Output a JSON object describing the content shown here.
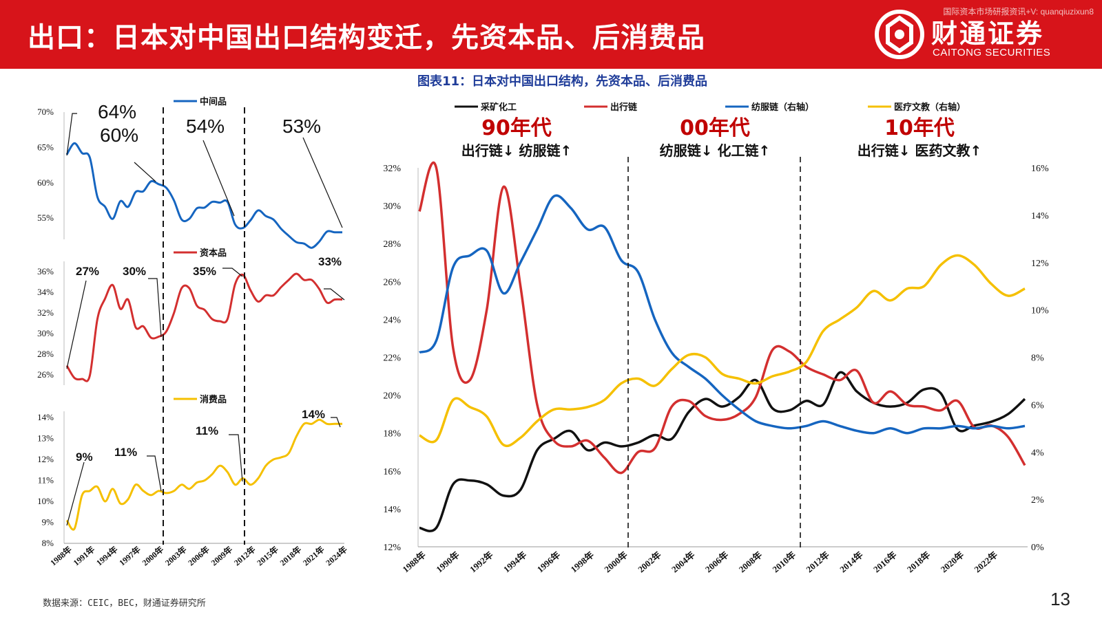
{
  "header": {
    "title": "出口：日本对中国出口结构变迁，先资本品、后消费品",
    "watermark": "国际资本市场研报资讯+V: quanqiuzixun8",
    "logo_cn": "财通证券",
    "logo_en": "CAITONG SECURITIES"
  },
  "footer": {
    "source": "数据来源：CEIC，BEC，财通证券研究所",
    "page_number": "13"
  },
  "colors": {
    "brand_red": "#d7141a",
    "blue": "#1565c0",
    "red": "#d32f2f",
    "yellow": "#f5c000",
    "black": "#111111"
  },
  "chart_data": [
    {
      "type": "line",
      "panel": "中间品",
      "x": [
        "1988年",
        "1989年",
        "1990年",
        "1991年",
        "1992年",
        "1993年",
        "1994年",
        "1995年",
        "1996年",
        "1997年",
        "1998年",
        "1999年",
        "2000年",
        "2001年",
        "2002年",
        "2003年",
        "2004年",
        "2005年",
        "2006年",
        "2007年",
        "2008年",
        "2009年",
        "2010年",
        "2011年",
        "2012年",
        "2013年",
        "2014年",
        "2015年",
        "2016年",
        "2017年",
        "2018年",
        "2019年",
        "2020年",
        "2021年",
        "2022年",
        "2023年",
        "2024年"
      ],
      "series": [
        {
          "name": "中间品",
          "values": [
            64,
            65.6,
            64.2,
            63.6,
            58,
            56.6,
            54.9,
            57.4,
            56.6,
            58.7,
            58.8,
            60.2,
            59.8,
            59.3,
            57.5,
            54.8,
            54.9,
            56.4,
            56.5,
            57.3,
            57.2,
            57.3,
            54.1,
            53.6,
            54.7,
            56.1,
            55.3,
            54.8,
            53.5,
            52.5,
            51.6,
            51.4,
            50.8,
            51.7,
            53.1,
            53.0,
            53.0
          ]
        }
      ],
      "ylim": [
        52,
        70
      ],
      "yticks": [
        "55%",
        "60%",
        "65%",
        "70%"
      ],
      "annotations": [
        "64%",
        "60%",
        "54%",
        "53%"
      ]
    },
    {
      "type": "line",
      "panel": "资本品",
      "x_ref": 0,
      "series": [
        {
          "name": "资本品",
          "values": [
            26.9,
            25.7,
            25.6,
            25.9,
            31.4,
            33.4,
            34.7,
            32.4,
            33.3,
            30.6,
            30.7,
            29.6,
            29.7,
            30.2,
            32,
            34.4,
            34.4,
            32.7,
            32.3,
            31.4,
            31.2,
            31.4,
            34.8,
            35.7,
            34.2,
            33.1,
            33.7,
            33.7,
            34.5,
            35.2,
            35.8,
            35.2,
            35.2,
            34.3,
            33,
            33.3,
            33.3
          ]
        }
      ],
      "ylim": [
        25,
        37
      ],
      "yticks": [
        "26%",
        "28%",
        "30%",
        "32%",
        "34%",
        "36%"
      ],
      "annotations": [
        "27%",
        "30%",
        "35%",
        "33%"
      ]
    },
    {
      "type": "line",
      "panel": "消费品",
      "x_ref": 0,
      "series": [
        {
          "name": "消费品",
          "values": [
            9.1,
            8.7,
            10.3,
            10.5,
            10.7,
            10,
            10.6,
            9.9,
            10.1,
            10.8,
            10.5,
            10.3,
            10.5,
            10.4,
            10.5,
            10.8,
            10.6,
            10.9,
            11,
            11.3,
            11.7,
            11.4,
            10.8,
            11.1,
            10.8,
            11.1,
            11.7,
            12,
            12.1,
            12.3,
            13.1,
            13.7,
            13.7,
            13.9,
            13.7,
            13.7,
            13.7
          ]
        }
      ],
      "ylim": [
        8,
        14.3
      ],
      "yticks": [
        "8%",
        "9%",
        "10%",
        "11%",
        "12%",
        "13%",
        "14%"
      ],
      "annotations": [
        "9%",
        "11%",
        "11%",
        "14%"
      ]
    },
    {
      "type": "line",
      "panel": "图表11：日本对中国出口结构，先资本品、后消费品",
      "title": "图表11：日本对中国出口结构，先资本品、后消费品",
      "x": [
        "1988年",
        "1989年",
        "1990年",
        "1991年",
        "1992年",
        "1993年",
        "1994年",
        "1995年",
        "1996年",
        "1997年",
        "1998年",
        "1999年",
        "2000年",
        "2001年",
        "2002年",
        "2003年",
        "2004年",
        "2005年",
        "2006年",
        "2007年",
        "2008年",
        "2009年",
        "2010年",
        "2011年",
        "2012年",
        "2013年",
        "2014年",
        "2015年",
        "2016年",
        "2017年",
        "2018年",
        "2019年",
        "2020年",
        "2021年",
        "2022年",
        "2023年",
        "2024年"
      ],
      "xticks": [
        "1988年",
        "1990年",
        "1992年",
        "1994年",
        "1996年",
        "1998年",
        "2000年",
        "2002年",
        "2004年",
        "2006年",
        "2008年",
        "2010年",
        "2012年",
        "2014年",
        "2016年",
        "2018年",
        "2020年",
        "2022年"
      ],
      "ylim": [
        12,
        32
      ],
      "yticks": [
        "12%",
        "14%",
        "16%",
        "18%",
        "20%",
        "22%",
        "24%",
        "26%",
        "28%",
        "30%",
        "32%"
      ],
      "y2lim": [
        0,
        16
      ],
      "y2ticks": [
        "0%",
        "2%",
        "4%",
        "6%",
        "8%",
        "10%",
        "12%",
        "14%",
        "16%"
      ],
      "series": [
        {
          "name": "采矿化工",
          "axis": "left",
          "color": "#111111",
          "values": [
            13,
            13,
            15.3,
            15.5,
            15.3,
            14.7,
            15,
            17.1,
            17.7,
            18.1,
            17.1,
            17.5,
            17.3,
            17.5,
            17.9,
            17.7,
            19.1,
            19.8,
            19.4,
            19.9,
            20.8,
            19.3,
            19.2,
            19.7,
            19.5,
            21.2,
            20.2,
            19.6,
            19.4,
            19.6,
            20.3,
            20.1,
            18.2,
            18.4,
            18.6,
            19,
            19.8
          ]
        },
        {
          "name": "出行链",
          "axis": "left",
          "color": "#d32f2f",
          "values": [
            29.7,
            32,
            22.5,
            20.8,
            24.5,
            31,
            25.8,
            19.5,
            17.6,
            17.3,
            17.6,
            16.7,
            15.9,
            17,
            17.2,
            19.4,
            19.7,
            18.9,
            18.7,
            19,
            19.9,
            22.4,
            22.3,
            21.5,
            21.1,
            20.8,
            21.3,
            19.6,
            20.2,
            19.5,
            19.4,
            19.2,
            19.7,
            18.3,
            18.4,
            17.8,
            16.3
          ]
        },
        {
          "name": "纺服链（右轴）",
          "axis": "right",
          "color": "#1565c0",
          "values": [
            8.2,
            8.7,
            11.8,
            12.3,
            12.5,
            10.7,
            12,
            13.4,
            14.8,
            14.3,
            13.4,
            13.5,
            12.1,
            11.6,
            9.6,
            8.2,
            7.6,
            7.1,
            6.4,
            5.8,
            5.3,
            5.1,
            5,
            5.1,
            5.3,
            5.1,
            4.9,
            4.8,
            5,
            4.8,
            5,
            5,
            5.1,
            5,
            5.1,
            5,
            5.1
          ]
        },
        {
          "name": "医疗文教（右轴）",
          "axis": "right",
          "color": "#f5c000",
          "values": [
            4.7,
            4.5,
            6.2,
            5.9,
            5.5,
            4.3,
            4.6,
            5.3,
            5.8,
            5.8,
            5.9,
            6.2,
            6.9,
            7.1,
            6.8,
            7.5,
            8.1,
            8,
            7.3,
            7.1,
            6.9,
            7.2,
            7.4,
            7.8,
            9.1,
            9.6,
            10.1,
            10.8,
            10.4,
            10.9,
            11,
            11.9,
            12.3,
            11.9,
            11.1,
            10.6,
            10.9
          ]
        }
      ],
      "annotations": [
        {
          "big": "90年代",
          "sub": "出行链↓ 纺服链↑"
        },
        {
          "big": "00年代",
          "sub": "纺服链↓ 化工链↑"
        },
        {
          "big": "10年代",
          "sub": "出行链↓ 医药文教↑"
        }
      ]
    }
  ]
}
